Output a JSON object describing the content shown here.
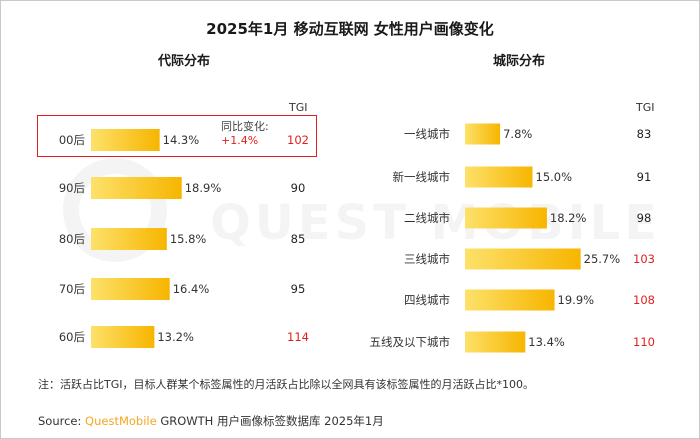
{
  "title": "2025年1月 移动互联网 女性用户画像变化",
  "note": {
    "label": "同比变化:",
    "value": "+1.4%"
  },
  "footnote": "注：活跃占比TGI，目标人群某个标签属性的月活跃占比除以全网具有该标签属性的月活跃占比*100。",
  "source": {
    "prefix": "Source: ",
    "brand": "QuestMobile",
    "suffix": " GROWTH 用户画像标签数据库 2025年1月"
  },
  "watermark": "QUEST MOBILE",
  "colors": {
    "bar_start": "#fde16a",
    "bar_end": "#f7b500",
    "tgi_high": "#e02020",
    "tgi_normal": "#222222"
  },
  "chart_data": [
    {
      "type": "bar",
      "orientation": "horizontal",
      "title": "代际分布",
      "tgi_header": "TGI",
      "categories": [
        "00后",
        "90后",
        "80后",
        "70后",
        "60后"
      ],
      "values": [
        14.3,
        18.9,
        15.8,
        16.4,
        13.2
      ],
      "value_labels": [
        "14.3%",
        "18.9%",
        "15.8%",
        "16.4%",
        "13.2%"
      ],
      "tgi": [
        102,
        90,
        85,
        95,
        114
      ]
    },
    {
      "type": "bar",
      "orientation": "horizontal",
      "title": "城际分布",
      "tgi_header": "TGI",
      "categories": [
        "一线城市",
        "新一线城市",
        "二线城市",
        "三线城市",
        "四线城市",
        "五线及以下城市"
      ],
      "values": [
        7.8,
        15.0,
        18.2,
        25.7,
        19.9,
        13.4
      ],
      "value_labels": [
        "7.8%",
        "15.0%",
        "18.2%",
        "25.7%",
        "19.9%",
        "13.4%"
      ],
      "tgi": [
        83,
        91,
        98,
        103,
        108,
        110
      ]
    }
  ]
}
